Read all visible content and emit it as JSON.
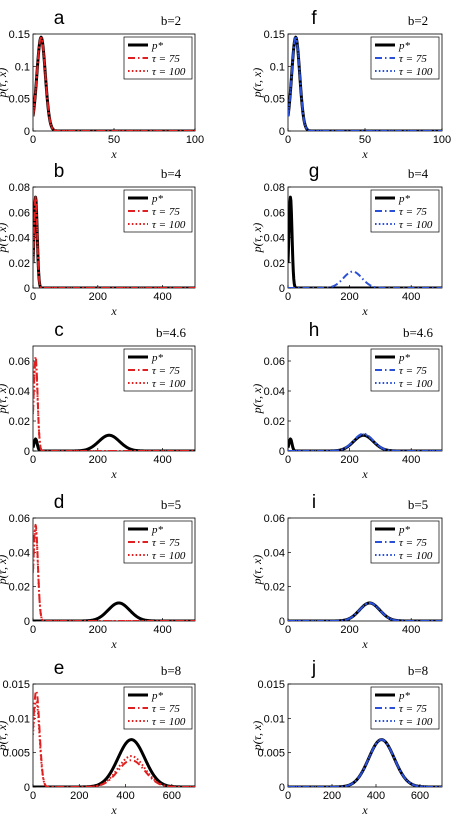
{
  "colors": {
    "p_star": "#000000",
    "left_series": "#e02020",
    "right_series": "#2a50d8"
  },
  "legend_labels": {
    "p_star": "p*",
    "tau75": "τ = 75",
    "tau100": "τ = 100"
  },
  "chart_data": [
    {
      "letter": "a",
      "b_label": "b=2",
      "type": "line",
      "xlabel": "x",
      "ylabel": "p(τ, x)",
      "xlim": [
        0,
        100
      ],
      "ylim": [
        0,
        0.15
      ],
      "xticks": [
        "0",
        "50",
        "100"
      ],
      "yticks": [
        "0",
        "0.05",
        "0.1",
        "0.15"
      ],
      "legend": "top-right",
      "series": [
        {
          "name": "p*",
          "style": "solid",
          "curves": [
            {
              "mu": 5,
              "sigma": 2.6,
              "h": 0.145
            }
          ]
        },
        {
          "name": "τ = 75",
          "style": "dashdot",
          "curves": [
            {
              "mu": 5,
              "sigma": 2.6,
              "h": 0.145
            }
          ]
        },
        {
          "name": "τ = 100",
          "style": "dotted",
          "curves": [
            {
              "mu": 5,
              "sigma": 2.6,
              "h": 0.145
            }
          ]
        }
      ]
    },
    {
      "letter": "b",
      "b_label": "b=4",
      "type": "line",
      "xlabel": "x",
      "ylabel": "p(τ, x)",
      "xlim": [
        0,
        500
      ],
      "ylim": [
        0,
        0.08
      ],
      "xticks": [
        "0",
        "200",
        "400"
      ],
      "yticks": [
        "0",
        "0.02",
        "0.04",
        "0.06",
        "0.08"
      ],
      "legend": "top-right",
      "series": [
        {
          "name": "p*",
          "style": "solid",
          "curves": [
            {
              "mu": 8,
              "sigma": 5,
              "h": 0.072
            }
          ]
        },
        {
          "name": "τ = 75",
          "style": "dashdot",
          "curves": [
            {
              "mu": 8,
              "sigma": 5,
              "h": 0.072
            }
          ]
        },
        {
          "name": "τ = 100",
          "style": "dotted",
          "curves": [
            {
              "mu": 8,
              "sigma": 5,
              "h": 0.072
            }
          ]
        }
      ]
    },
    {
      "letter": "c",
      "b_label": "b=4.6",
      "type": "line",
      "xlabel": "x",
      "ylabel": "p(τ, x)",
      "xlim": [
        0,
        500
      ],
      "ylim": [
        0,
        0.07
      ],
      "xticks": [
        "0",
        "200",
        "400"
      ],
      "yticks": [
        "0",
        "0.02",
        "0.04",
        "0.06"
      ],
      "legend": "top-right",
      "series": [
        {
          "name": "p*",
          "style": "solid",
          "curves": [
            {
              "mu": 8,
              "sigma": 5,
              "h": 0.008
            },
            {
              "mu": 235,
              "sigma": 32,
              "h": 0.0105
            }
          ]
        },
        {
          "name": "τ = 75",
          "style": "dashdot",
          "curves": [
            {
              "mu": 8,
              "sigma": 6,
              "h": 0.063
            }
          ]
        },
        {
          "name": "τ = 100",
          "style": "dotted",
          "curves": [
            {
              "mu": 8,
              "sigma": 6,
              "h": 0.06
            }
          ]
        }
      ]
    },
    {
      "letter": "d",
      "b_label": "b=5",
      "type": "line",
      "xlabel": "x",
      "ylabel": "p(τ, x)",
      "xlim": [
        0,
        500
      ],
      "ylim": [
        0,
        0.06
      ],
      "xticks": [
        "0",
        "200",
        "400"
      ],
      "yticks": [
        "0",
        "0.02",
        "0.04",
        "0.06"
      ],
      "legend": "top-right",
      "series": [
        {
          "name": "p*",
          "style": "solid",
          "curves": [
            {
              "mu": 265,
              "sigma": 33,
              "h": 0.0105
            }
          ]
        },
        {
          "name": "τ = 75",
          "style": "dashdot",
          "curves": [
            {
              "mu": 8,
              "sigma": 7,
              "h": 0.056
            }
          ]
        },
        {
          "name": "τ = 100",
          "style": "dotted",
          "curves": [
            {
              "mu": 8,
              "sigma": 7,
              "h": 0.054
            }
          ]
        }
      ]
    },
    {
      "letter": "e",
      "b_label": "b=8",
      "type": "line",
      "xlabel": "x",
      "ylabel": "p(τ, x)",
      "xlim": [
        0,
        700
      ],
      "ylim": [
        0,
        0.015
      ],
      "xticks": [
        "0",
        "200",
        "400",
        "600"
      ],
      "yticks": [
        "0",
        "0.005",
        "0.01",
        "0.015"
      ],
      "legend": "top-right",
      "series": [
        {
          "name": "p*",
          "style": "solid",
          "curves": [
            {
              "mu": 425,
              "sigma": 58,
              "h": 0.0069
            }
          ]
        },
        {
          "name": "τ = 75",
          "style": "dashdot",
          "curves": [
            {
              "mu": 14,
              "sigma": 14,
              "h": 0.014
            },
            {
              "mu": 425,
              "sigma": 58,
              "h": 0.0039
            }
          ]
        },
        {
          "name": "τ = 100",
          "style": "dotted",
          "curves": [
            {
              "mu": 14,
              "sigma": 14,
              "h": 0.0125
            },
            {
              "mu": 425,
              "sigma": 58,
              "h": 0.0045
            }
          ]
        }
      ]
    },
    {
      "letter": "f",
      "b_label": "b=2",
      "type": "line",
      "xlabel": "x",
      "ylabel": "p(τ, x)",
      "xlim": [
        0,
        100
      ],
      "ylim": [
        0,
        0.15
      ],
      "xticks": [
        "0",
        "50",
        "100"
      ],
      "yticks": [
        "0",
        "0.05",
        "0.1",
        "0.15"
      ],
      "legend": "top-right",
      "series": [
        {
          "name": "p*",
          "style": "solid",
          "curves": [
            {
              "mu": 5,
              "sigma": 2.6,
              "h": 0.145
            }
          ]
        },
        {
          "name": "τ = 75",
          "style": "dashdot",
          "curves": [
            {
              "mu": 5,
              "sigma": 2.6,
              "h": 0.145
            }
          ]
        },
        {
          "name": "τ = 100",
          "style": "dotted",
          "curves": [
            {
              "mu": 5,
              "sigma": 2.6,
              "h": 0.145
            }
          ]
        }
      ]
    },
    {
      "letter": "g",
      "b_label": "b=4",
      "type": "line",
      "xlabel": "x",
      "ylabel": "p(τ, x)",
      "xlim": [
        0,
        500
      ],
      "ylim": [
        0,
        0.08
      ],
      "xticks": [
        "0",
        "200",
        "400"
      ],
      "yticks": [
        "0",
        "0.02",
        "0.04",
        "0.06",
        "0.08"
      ],
      "legend": "top-right",
      "series": [
        {
          "name": "p*",
          "style": "solid",
          "curves": [
            {
              "mu": 8,
              "sigma": 5,
              "h": 0.072
            }
          ]
        },
        {
          "name": "τ = 75",
          "style": "dashdot",
          "curves": [
            {
              "mu": 210,
              "sigma": 30,
              "h": 0.013
            }
          ]
        },
        {
          "name": "τ = 100",
          "style": "dotted",
          "curves": []
        }
      ]
    },
    {
      "letter": "h",
      "b_label": "b=4.6",
      "type": "line",
      "xlabel": "x",
      "ylabel": "p(τ, x)",
      "xlim": [
        0,
        500
      ],
      "ylim": [
        0,
        0.07
      ],
      "xticks": [
        "0",
        "200",
        "400"
      ],
      "yticks": [
        "0",
        "0.02",
        "0.04",
        "0.06"
      ],
      "legend": "top-right",
      "series": [
        {
          "name": "p*",
          "style": "solid",
          "curves": [
            {
              "mu": 8,
              "sigma": 5,
              "h": 0.008
            },
            {
              "mu": 245,
              "sigma": 32,
              "h": 0.0105
            }
          ]
        },
        {
          "name": "τ = 75",
          "style": "dashdot",
          "curves": [
            {
              "mu": 245,
              "sigma": 32,
              "h": 0.0115
            }
          ]
        },
        {
          "name": "τ = 100",
          "style": "dotted",
          "curves": [
            {
              "mu": 245,
              "sigma": 32,
              "h": 0.011
            }
          ]
        }
      ]
    },
    {
      "letter": "i",
      "b_label": "b=5",
      "type": "line",
      "xlabel": "x",
      "ylabel": "p(τ, x)",
      "xlim": [
        0,
        500
      ],
      "ylim": [
        0,
        0.06
      ],
      "xticks": [
        "0",
        "200",
        "400"
      ],
      "yticks": [
        "0",
        "0.02",
        "0.04",
        "0.06"
      ],
      "legend": "top-right",
      "series": [
        {
          "name": "p*",
          "style": "solid",
          "curves": [
            {
              "mu": 265,
              "sigma": 33,
              "h": 0.0105
            }
          ]
        },
        {
          "name": "τ = 75",
          "style": "dashdot",
          "curves": [
            {
              "mu": 265,
              "sigma": 33,
              "h": 0.0105
            }
          ]
        },
        {
          "name": "τ = 100",
          "style": "dotted",
          "curves": [
            {
              "mu": 265,
              "sigma": 33,
              "h": 0.0105
            }
          ]
        }
      ]
    },
    {
      "letter": "j",
      "b_label": "b=8",
      "type": "line",
      "xlabel": "x",
      "ylabel": "p(τ, x)",
      "xlim": [
        0,
        700
      ],
      "ylim": [
        0,
        0.015
      ],
      "xticks": [
        "0",
        "200",
        "400",
        "600"
      ],
      "yticks": [
        "0",
        "0.005",
        "0.01",
        "0.015"
      ],
      "legend": "top-right",
      "series": [
        {
          "name": "p*",
          "style": "solid",
          "curves": [
            {
              "mu": 425,
              "sigma": 58,
              "h": 0.0069
            }
          ]
        },
        {
          "name": "τ = 75",
          "style": "dashdot",
          "curves": [
            {
              "mu": 425,
              "sigma": 58,
              "h": 0.0069
            }
          ]
        },
        {
          "name": "τ = 100",
          "style": "dotted",
          "curves": [
            {
              "mu": 425,
              "sigma": 58,
              "h": 0.0069
            }
          ]
        }
      ]
    }
  ]
}
